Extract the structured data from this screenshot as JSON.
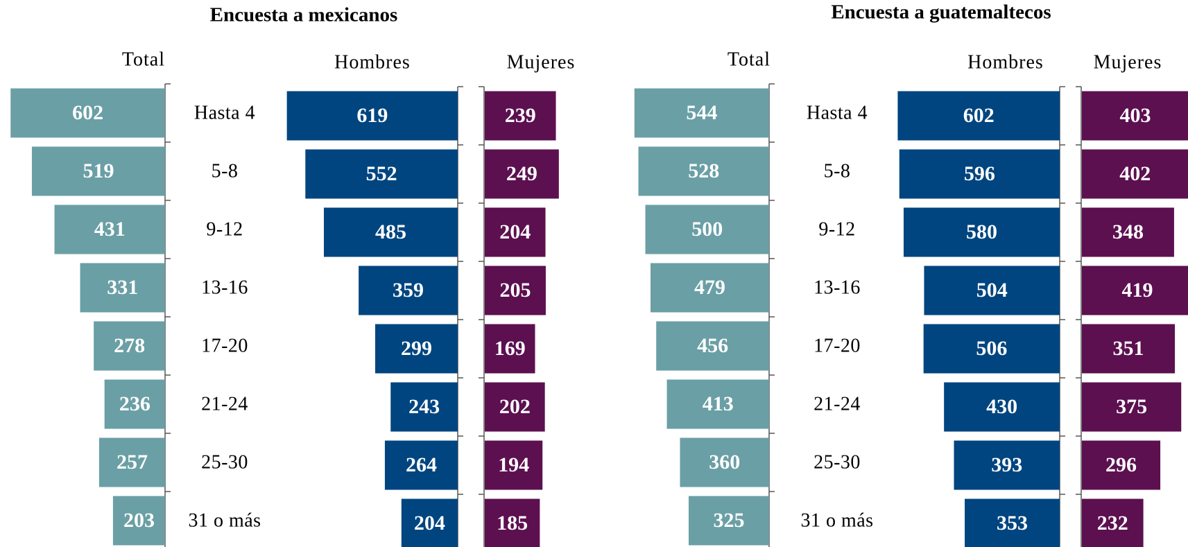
{
  "chart_data": [
    {
      "type": "bar",
      "title": "Encuesta a mexicanos",
      "categories": [
        "Hasta 4",
        "5-8",
        "9-12",
        "13-16",
        "17-20",
        "21-24",
        "25-30",
        "31 o más"
      ],
      "series": [
        {
          "name": "Total",
          "color": "#6a9fa5",
          "values": [
            602,
            519,
            431,
            331,
            278,
            236,
            257,
            203
          ]
        },
        {
          "name": "Hombres",
          "color": "#00457f",
          "values": [
            619,
            552,
            485,
            359,
            299,
            243,
            264,
            204
          ]
        },
        {
          "name": "Mujeres",
          "color": "#5c1050",
          "values": [
            239,
            249,
            204,
            205,
            169,
            202,
            194,
            185
          ]
        }
      ]
    },
    {
      "type": "bar",
      "title": "Encuesta a guatemaltecos",
      "categories": [
        "Hasta 4",
        "5-8",
        "9-12",
        "13-16",
        "17-20",
        "21-24",
        "25-30",
        "31 o más"
      ],
      "series": [
        {
          "name": "Total",
          "color": "#6a9fa5",
          "values": [
            544,
            528,
            500,
            479,
            456,
            413,
            360,
            325
          ]
        },
        {
          "name": "Hombres",
          "color": "#00457f",
          "values": [
            602,
            596,
            580,
            504,
            506,
            430,
            393,
            353
          ]
        },
        {
          "name": "Mujeres",
          "color": "#5c1050",
          "values": [
            403,
            402,
            348,
            419,
            351,
            375,
            296,
            232
          ]
        }
      ]
    }
  ]
}
